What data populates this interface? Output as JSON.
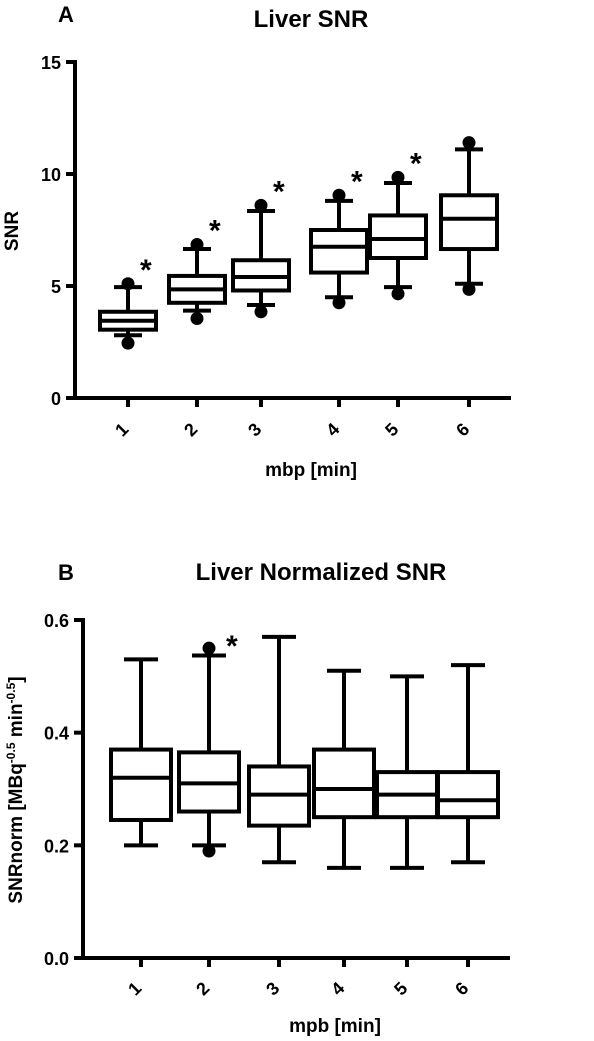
{
  "chart_data": [
    {
      "type": "box",
      "panel_label": "A",
      "title": "Liver SNR",
      "xlabel": "mbp [min]",
      "ylabel": "SNR",
      "ylim": [
        0,
        15
      ],
      "yticks": [
        0,
        5,
        10,
        15
      ],
      "categories": [
        "1",
        "2",
        "3",
        "4",
        "5",
        "6"
      ],
      "boxes": [
        {
          "whisker_low": 2.8,
          "q1": 3.05,
          "median": 3.45,
          "q3": 3.85,
          "whisker_high": 4.95,
          "outliers_low": [
            2.45
          ],
          "outliers_high": [
            5.1
          ],
          "significant": true
        },
        {
          "whisker_low": 3.9,
          "q1": 4.25,
          "median": 4.85,
          "q3": 5.45,
          "whisker_high": 6.65,
          "outliers_low": [
            3.55
          ],
          "outliers_high": [
            6.85
          ],
          "significant": true
        },
        {
          "whisker_low": 4.15,
          "q1": 4.8,
          "median": 5.4,
          "q3": 6.15,
          "whisker_high": 8.35,
          "outliers_low": [
            3.85
          ],
          "outliers_high": [
            8.6
          ],
          "significant": true
        },
        {
          "whisker_low": 4.5,
          "q1": 5.6,
          "median": 6.75,
          "q3": 7.5,
          "whisker_high": 8.8,
          "outliers_low": [
            4.25
          ],
          "outliers_high": [
            9.05
          ],
          "significant": true
        },
        {
          "whisker_low": 4.95,
          "q1": 6.25,
          "median": 7.1,
          "q3": 8.15,
          "whisker_high": 9.6,
          "outliers_low": [
            4.65
          ],
          "outliers_high": [
            9.85
          ],
          "significant": true
        },
        {
          "whisker_low": 5.1,
          "q1": 6.65,
          "median": 8.0,
          "q3": 9.05,
          "whisker_high": 11.1,
          "outliers_low": [
            4.85
          ],
          "outliers_high": [
            11.4
          ],
          "significant": false
        }
      ],
      "significance_marker": "*"
    },
    {
      "type": "box",
      "panel_label": "B",
      "title": "Liver Normalized SNR",
      "xlabel": "mpb [min]",
      "ylabel": "SNRnorm [MBq",
      "ylabel_sup1": "-0.5",
      "ylabel_mid": " min",
      "ylabel_sup2": "-0.5",
      "ylabel_end": "]",
      "ylim": [
        0,
        0.6
      ],
      "yticks": [
        0.0,
        0.2,
        0.4,
        0.6
      ],
      "ytick_labels": [
        "0.0",
        "0.2",
        "0.4",
        "0.6"
      ],
      "categories": [
        "1",
        "2",
        "3",
        "4",
        "5",
        "6"
      ],
      "boxes": [
        {
          "whisker_low": 0.2,
          "q1": 0.245,
          "median": 0.32,
          "q3": 0.37,
          "whisker_high": 0.53,
          "outliers_low": [],
          "outliers_high": [],
          "significant": false
        },
        {
          "whisker_low": 0.2,
          "q1": 0.26,
          "median": 0.31,
          "q3": 0.365,
          "whisker_high": 0.537,
          "outliers_low": [
            0.19
          ],
          "outliers_high": [
            0.55
          ],
          "significant": true
        },
        {
          "whisker_low": 0.17,
          "q1": 0.235,
          "median": 0.29,
          "q3": 0.34,
          "whisker_high": 0.57,
          "outliers_low": [],
          "outliers_high": [],
          "significant": false
        },
        {
          "whisker_low": 0.16,
          "q1": 0.25,
          "median": 0.3,
          "q3": 0.37,
          "whisker_high": 0.51,
          "outliers_low": [],
          "outliers_high": [],
          "significant": false
        },
        {
          "whisker_low": 0.16,
          "q1": 0.25,
          "median": 0.29,
          "q3": 0.33,
          "whisker_high": 0.5,
          "outliers_low": [],
          "outliers_high": [],
          "significant": false
        },
        {
          "whisker_low": 0.17,
          "q1": 0.25,
          "median": 0.28,
          "q3": 0.33,
          "whisker_high": 0.52,
          "outliers_low": [],
          "outliers_high": [],
          "significant": false
        }
      ],
      "significance_marker": "*"
    }
  ]
}
